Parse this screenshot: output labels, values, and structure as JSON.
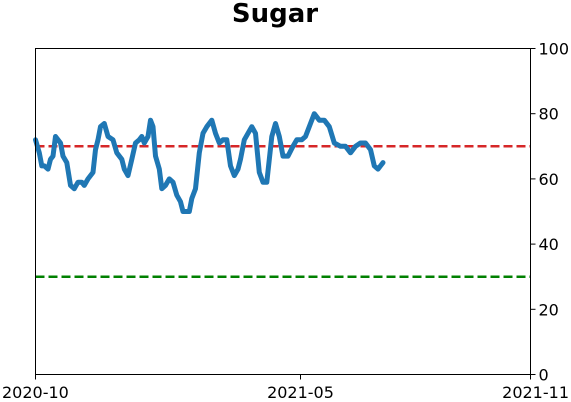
{
  "chart_data": {
    "type": "line",
    "title": "Sugar",
    "xlabel": "",
    "ylabel": "",
    "y_axis_side": "right",
    "x_range": [
      "2020-10-01",
      "2021-11-01"
    ],
    "x_ticks": [
      {
        "date": "2020-10-01",
        "label": "2020-10"
      },
      {
        "date": "2021-05-01",
        "label": "2021-05"
      },
      {
        "date": "2021-11-01",
        "label": "2021-11"
      }
    ],
    "ylim": [
      0,
      100
    ],
    "y_ticks": [
      0,
      20,
      40,
      60,
      80,
      100
    ],
    "grid": false,
    "reference_lines": [
      {
        "y": 70,
        "color": "#d62728",
        "style": "dashed"
      },
      {
        "y": 30,
        "color": "#008000",
        "style": "dashed"
      }
    ],
    "series": [
      {
        "color": "#1f77b4",
        "points": [
          [
            "2020-10-01",
            72
          ],
          [
            "2020-10-04",
            68
          ],
          [
            "2020-10-06",
            64
          ],
          [
            "2020-10-08",
            64
          ],
          [
            "2020-10-11",
            63
          ],
          [
            "2020-10-13",
            66
          ],
          [
            "2020-10-15",
            67
          ],
          [
            "2020-10-17",
            73
          ],
          [
            "2020-10-19",
            72
          ],
          [
            "2020-10-21",
            71
          ],
          [
            "2020-10-23",
            67
          ],
          [
            "2020-10-26",
            65
          ],
          [
            "2020-10-29",
            58
          ],
          [
            "2020-11-01",
            57
          ],
          [
            "2020-11-04",
            59
          ],
          [
            "2020-11-07",
            59
          ],
          [
            "2020-11-09",
            58
          ],
          [
            "2020-11-12",
            60
          ],
          [
            "2020-11-16",
            62
          ],
          [
            "2020-11-18",
            69
          ],
          [
            "2020-11-20",
            72
          ],
          [
            "2020-11-22",
            76
          ],
          [
            "2020-11-25",
            77
          ],
          [
            "2020-11-28",
            73
          ],
          [
            "2020-12-02",
            72
          ],
          [
            "2020-12-05",
            68
          ],
          [
            "2020-12-09",
            66
          ],
          [
            "2020-12-11",
            63
          ],
          [
            "2020-12-14",
            61
          ],
          [
            "2020-12-17",
            66
          ],
          [
            "2020-12-20",
            71
          ],
          [
            "2020-12-23",
            72
          ],
          [
            "2020-12-25",
            73
          ],
          [
            "2020-12-27",
            71
          ],
          [
            "2020-12-30",
            73
          ],
          [
            "2021-01-01",
            78
          ],
          [
            "2021-01-03",
            76
          ],
          [
            "2021-01-05",
            67
          ],
          [
            "2021-01-08",
            63
          ],
          [
            "2021-01-10",
            57
          ],
          [
            "2021-01-13",
            58
          ],
          [
            "2021-01-16",
            60
          ],
          [
            "2021-01-19",
            59
          ],
          [
            "2021-01-22",
            55
          ],
          [
            "2021-01-25",
            53
          ],
          [
            "2021-01-27",
            50
          ],
          [
            "2021-02-01",
            50
          ],
          [
            "2021-02-03",
            54
          ],
          [
            "2021-02-06",
            57
          ],
          [
            "2021-02-09",
            68
          ],
          [
            "2021-02-12",
            74
          ],
          [
            "2021-02-15",
            76
          ],
          [
            "2021-02-19",
            78
          ],
          [
            "2021-02-22",
            74
          ],
          [
            "2021-02-25",
            71
          ],
          [
            "2021-02-28",
            72
          ],
          [
            "2021-03-03",
            72
          ],
          [
            "2021-03-06",
            64
          ],
          [
            "2021-03-09",
            61
          ],
          [
            "2021-03-12",
            63
          ],
          [
            "2021-03-14",
            66
          ],
          [
            "2021-03-17",
            72
          ],
          [
            "2021-03-20",
            74
          ],
          [
            "2021-03-23",
            76
          ],
          [
            "2021-03-26",
            74
          ],
          [
            "2021-03-29",
            62
          ],
          [
            "2021-04-01",
            59
          ],
          [
            "2021-04-04",
            59
          ],
          [
            "2021-04-08",
            73
          ],
          [
            "2021-04-11",
            77
          ],
          [
            "2021-04-14",
            73
          ],
          [
            "2021-04-17",
            67
          ],
          [
            "2021-04-21",
            67
          ],
          [
            "2021-04-25",
            70
          ],
          [
            "2021-04-28",
            72
          ],
          [
            "2021-05-02",
            72
          ],
          [
            "2021-05-05",
            73
          ],
          [
            "2021-05-09",
            77
          ],
          [
            "2021-05-12",
            80
          ],
          [
            "2021-05-16",
            78
          ],
          [
            "2021-05-20",
            78
          ],
          [
            "2021-05-24",
            76
          ],
          [
            "2021-05-28",
            71
          ],
          [
            "2021-06-02",
            70
          ],
          [
            "2021-06-06",
            70
          ],
          [
            "2021-06-10",
            68
          ],
          [
            "2021-06-14",
            70
          ],
          [
            "2021-06-18",
            71
          ],
          [
            "2021-06-22",
            71
          ],
          [
            "2021-06-26",
            69
          ],
          [
            "2021-06-29",
            64
          ],
          [
            "2021-07-02",
            63
          ],
          [
            "2021-07-06",
            65
          ]
        ]
      }
    ]
  }
}
